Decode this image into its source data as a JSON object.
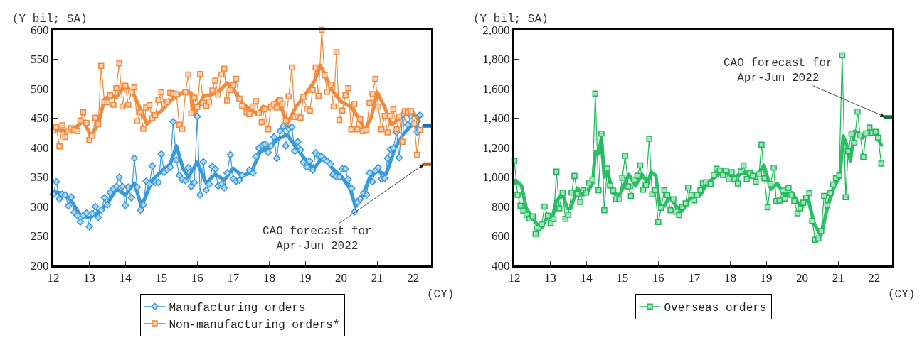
{
  "chart_data": [
    {
      "type": "line",
      "ylabel": "(Y bil; SA)",
      "xlabel": "(CY)",
      "xlim": [
        12,
        22.5
      ],
      "ylim": [
        200,
        600
      ],
      "xticks": [
        12,
        13,
        14,
        15,
        16,
        17,
        18,
        19,
        20,
        21,
        22
      ],
      "yticks": [
        200,
        250,
        300,
        350,
        400,
        450,
        500,
        550,
        600
      ],
      "grid": false,
      "legend": "bottom",
      "line_style": "solid",
      "annotations": [
        {
          "text": "CAO forecast for\nApr-Jun 2022",
          "x": 22.3,
          "y": 372
        }
      ],
      "series": [
        {
          "color": "#f08a3c",
          "marker": "none",
          "x": [
            12,
            12.5,
            12.83,
            13.05,
            13.25,
            13.42,
            13.58,
            13.75,
            14,
            14.25,
            14.5,
            14.6,
            14.83,
            15,
            15.25,
            15.5,
            15.67,
            15.83,
            15.92,
            16.17,
            16.33,
            16.58,
            16.83,
            17,
            17.25,
            17.5,
            17.67,
            17.83,
            18,
            18.25,
            18.5,
            18.75,
            19,
            19.25,
            19.42,
            19.58,
            19.75,
            20,
            20.25,
            20.5,
            20.65,
            20.83,
            21,
            21.2,
            21.4,
            21.75,
            22,
            22.17
          ],
          "values": [
            430,
            428,
            445,
            420,
            440,
            482,
            490,
            485,
            507,
            488,
            455,
            440,
            455,
            462,
            480,
            490,
            496,
            493,
            455,
            487,
            489,
            494,
            510,
            500,
            475,
            464,
            456,
            470,
            466,
            483,
            440,
            470,
            490,
            512,
            540,
            520,
            497,
            478,
            470,
            450,
            430,
            450,
            494,
            470,
            439,
            455,
            460,
            445
          ]
        },
        {
          "color": "#3a9ad9",
          "marker": "none",
          "x": [
            12,
            12.25,
            12.5,
            12.75,
            13,
            13.25,
            13.5,
            13.75,
            14,
            14.25,
            14.45,
            14.75,
            15,
            15.25,
            15.42,
            15.6,
            15.75,
            16,
            16.25,
            16.5,
            16.75,
            17,
            17.25,
            17.5,
            17.75,
            18,
            18.25,
            18.5,
            18.75,
            19,
            19.25,
            19.5,
            19.75,
            20,
            20.25,
            20.4,
            20.6,
            20.8,
            21,
            21.25,
            21.5,
            21.75,
            22,
            22.17
          ],
          "values": [
            325,
            323,
            310,
            285,
            281,
            290,
            305,
            330,
            320,
            340,
            300,
            345,
            360,
            372,
            403,
            365,
            350,
            375,
            340,
            355,
            345,
            365,
            352,
            358,
            393,
            400,
            415,
            422,
            400,
            380,
            365,
            385,
            365,
            352,
            330,
            300,
            320,
            350,
            360,
            355,
            400,
            425,
            440,
            432
          ]
        },
        {
          "name": "Manufacturing orders",
          "color": "#3a9ad9",
          "marker": "diamond",
          "x": [
            12,
            12.08,
            12.17,
            12.25,
            12.33,
            12.42,
            12.5,
            12.58,
            12.67,
            12.75,
            12.83,
            12.92,
            13,
            13.08,
            13.17,
            13.25,
            13.33,
            13.42,
            13.5,
            13.58,
            13.67,
            13.75,
            13.83,
            13.92,
            14,
            14.08,
            14.17,
            14.25,
            14.33,
            14.42,
            14.5,
            14.58,
            14.67,
            14.75,
            14.83,
            14.92,
            15,
            15.08,
            15.17,
            15.25,
            15.33,
            15.42,
            15.5,
            15.58,
            15.67,
            15.75,
            15.83,
            15.92,
            16,
            16.08,
            16.17,
            16.25,
            16.33,
            16.42,
            16.5,
            16.58,
            16.67,
            16.75,
            16.83,
            16.92,
            17,
            17.08,
            17.17,
            17.25,
            17.45,
            17.55,
            17.63,
            17.71,
            17.81,
            17.88,
            17.97,
            18.05,
            18.13,
            18.21,
            18.3,
            18.39,
            18.46,
            18.55,
            18.63,
            18.71,
            18.79,
            18.87,
            18.95,
            19.05,
            19.12,
            19.21,
            19.29,
            19.37,
            19.45,
            19.54,
            19.61,
            19.7,
            19.77,
            19.86,
            19.95,
            20.03,
            20.12,
            20.19,
            20.29,
            20.37,
            20.45,
            20.53,
            20.63,
            20.71,
            20.79,
            20.87,
            20.95,
            21.03,
            21.12,
            21.21,
            21.29,
            21.37,
            21.45,
            21.54,
            21.61,
            21.71,
            21.85,
            21.94,
            22.03,
            22.12,
            22.19
          ],
          "values": [
            321,
            342,
            313,
            321,
            320,
            301,
            316,
            290,
            285,
            274,
            285,
            289,
            266,
            288,
            300,
            282,
            294,
            315,
            303,
            324,
            330,
            334,
            350,
            334,
            302,
            333,
            315,
            382,
            333,
            294,
            303,
            343,
            338,
            369,
            341,
            341,
            389,
            358,
            363,
            367,
            444,
            379,
            353,
            346,
            344,
            366,
            334,
            341,
            453,
            320,
            376,
            328,
            338,
            368,
            364,
            335,
            338,
            332,
            357,
            388,
            347,
            343,
            345,
            353,
            362,
            357,
            385,
            399,
            404,
            406,
            392,
            403,
            418,
            382,
            428,
            436,
            403,
            432,
            435,
            394,
            410,
            396,
            375,
            367,
            377,
            362,
            391,
            386,
            385,
            380,
            377,
            372,
            354,
            351,
            350,
            364,
            364,
            346,
            331,
            291,
            307,
            313,
            323,
            320,
            357,
            342,
            361,
            366,
            347,
            348,
            382,
            397,
            399,
            426,
            383,
            456,
            439,
            454,
            441,
            426,
            455
          ]
        },
        {
          "name": "Non-manufacturing orders*",
          "color": "#f08a3c",
          "marker": "square",
          "x": [
            12,
            12.08,
            12.17,
            12.25,
            12.33,
            12.42,
            12.5,
            12.58,
            12.67,
            12.75,
            12.83,
            12.92,
            13,
            13.08,
            13.17,
            13.25,
            13.33,
            13.42,
            13.5,
            13.58,
            13.67,
            13.75,
            13.83,
            13.92,
            14,
            14.08,
            14.17,
            14.25,
            14.33,
            14.42,
            14.5,
            14.58,
            14.67,
            14.75,
            14.83,
            14.92,
            15,
            15.08,
            15.17,
            15.25,
            15.33,
            15.42,
            15.5,
            15.58,
            15.67,
            15.75,
            15.83,
            15.92,
            16,
            16.08,
            16.17,
            16.25,
            16.33,
            16.42,
            16.5,
            16.58,
            16.67,
            16.75,
            16.83,
            16.92,
            17,
            17.08,
            17.17,
            17.25,
            17.37,
            17.45,
            17.54,
            17.63,
            17.71,
            17.79,
            17.87,
            17.97,
            18.05,
            18.13,
            18.21,
            18.3,
            18.37,
            18.46,
            18.54,
            18.63,
            18.71,
            18.79,
            18.87,
            18.95,
            19.05,
            19.13,
            19.21,
            19.29,
            19.37,
            19.46,
            19.54,
            19.61,
            19.71,
            19.79,
            19.87,
            19.95,
            20.03,
            20.12,
            20.2,
            20.28,
            20.37,
            20.45,
            20.53,
            20.61,
            20.7,
            20.79,
            20.87,
            20.95,
            21.03,
            21.12,
            21.21,
            21.29,
            21.37,
            21.45,
            21.54,
            21.61,
            21.7,
            21.77,
            21.85,
            21.94,
            22.03,
            22.11,
            22.19
          ],
          "values": [
            429,
            435,
            402,
            438,
            418,
            429,
            433,
            430,
            428,
            446,
            460,
            442,
            413,
            420,
            451,
            440,
            539,
            477,
            477,
            489,
            473,
            501,
            543,
            470,
            505,
            473,
            495,
            502,
            445,
            460,
            432,
            468,
            472,
            450,
            455,
            481,
            494,
            474,
            478,
            493,
            492,
            491,
            439,
            432,
            494,
            524,
            458,
            485,
            469,
            525,
            476,
            471,
            478,
            497,
            514,
            490,
            524,
            534,
            480,
            498,
            506,
            517,
            483,
            471,
            460,
            457,
            470,
            479,
            458,
            443,
            465,
            431,
            470,
            474,
            468,
            480,
            474,
            446,
            487,
            536,
            452,
            453,
            451,
            486,
            466,
            463,
            498,
            536,
            488,
            600,
            523,
            495,
            507,
            470,
            562,
            447,
            463,
            489,
            501,
            431,
            474,
            431,
            448,
            428,
            430,
            476,
            491,
            517,
            470,
            431,
            454,
            426,
            454,
            465,
            431,
            453,
            410,
            462,
            460,
            462,
            441,
            388,
            430
          ]
        },
        {
          "color": "#1f6fb2",
          "marker": "none",
          "x": [
            22.3,
            22.48
          ],
          "values": [
            437,
            437
          ]
        },
        {
          "color": "#c55a11",
          "marker": "none",
          "x": [
            22.3,
            22.48
          ],
          "values": [
            372,
            372
          ]
        }
      ]
    },
    {
      "type": "line",
      "ylabel": "(Y bil; SA)",
      "xlabel": "(CY)",
      "xlim": [
        12,
        22.5
      ],
      "ylim": [
        400,
        2000
      ],
      "xticks": [
        12,
        13,
        14,
        15,
        16,
        17,
        18,
        19,
        20,
        21,
        22
      ],
      "yticks": [
        400,
        600,
        800,
        {
          "value": 1000,
          "label": "1,000"
        },
        {
          "value": 1200,
          "label": "1,200"
        },
        {
          "value": 1400,
          "label": "1,400"
        },
        {
          "value": 1600,
          "label": "1,600"
        },
        {
          "value": 1800,
          "label": "1,800"
        },
        {
          "value": 2000,
          "label": "2,000"
        }
      ],
      "grid": false,
      "legend": "bottom",
      "line_style": "solid",
      "annotations": [
        {
          "text": "CAO forecast for\nApr-Jun 2022",
          "x": 22.3,
          "y": 1409
        }
      ],
      "series": [
        {
          "color": "#2cbf66",
          "marker": "none",
          "x": [
            12,
            12.04,
            12.2,
            12.33,
            12.51,
            12.67,
            12.76,
            12.94,
            13.06,
            13.16,
            13.34,
            13.47,
            13.57,
            13.75,
            13.91,
            14,
            14.18,
            14.25,
            14.34,
            14.42,
            14.5,
            14.59,
            14.75,
            14.93,
            15.18,
            15.37,
            15.55,
            15.71,
            15.8,
            15.93,
            16.05,
            16.17,
            16.3,
            16.55,
            16.67,
            16.86,
            16.98,
            17.17,
            17.35,
            17.67,
            17.8,
            18.11,
            18.42,
            18.73,
            18.94,
            19.13,
            19.31,
            19.5,
            19.72,
            19.97,
            20.15,
            20.34,
            20.52,
            20.71,
            20.9,
            21.05,
            21.14,
            21.24,
            21.34,
            21.45,
            21.55,
            21.67,
            21.86,
            22.01,
            22.2
          ],
          "values": [
            957,
            978,
            942,
            788,
            726,
            665,
            657,
            741,
            726,
            834,
            888,
            788,
            788,
            926,
            880,
            888,
            957,
            1172,
            1157,
            1265,
            1000,
            1034,
            888,
            880,
            1018,
            942,
            1018,
            957,
            1034,
            1011,
            795,
            803,
            865,
            788,
            772,
            849,
            880,
            880,
            957,
            1018,
            1041,
            1003,
            1034,
            1010,
            1080,
            918,
            957,
            880,
            895,
            788,
            864,
            680,
            603,
            803,
            941,
            1003,
            1280,
            1218,
            1111,
            1311,
            1303,
            1265,
            1311,
            1311,
            1218
          ]
        },
        {
          "name": "Overseas orders",
          "color": "#20b85a",
          "marker": "square",
          "x": [
            12,
            12.09,
            12.17,
            12.25,
            12.34,
            12.42,
            12.51,
            12.59,
            12.67,
            12.76,
            12.84,
            12.93,
            13.01,
            13.09,
            13.17,
            13.25,
            13.34,
            13.42,
            13.5,
            13.59,
            13.67,
            13.75,
            13.83,
            13.92,
            14,
            14.08,
            14.17,
            14.25,
            14.34,
            14.42,
            14.5,
            14.58,
            14.66,
            14.75,
            14.83,
            14.92,
            15,
            15.08,
            15.17,
            15.24,
            15.34,
            15.42,
            15.5,
            15.58,
            15.66,
            15.75,
            15.83,
            15.91,
            16,
            16.08,
            16.17,
            16.25,
            16.34,
            16.42,
            16.5,
            16.58,
            16.67,
            16.76,
            16.83,
            16.92,
            17,
            17.08,
            17.17,
            17.24,
            17.33,
            17.45,
            17.54,
            17.62,
            17.71,
            17.8,
            17.88,
            17.96,
            18.04,
            18.12,
            18.21,
            18.29,
            18.37,
            18.46,
            18.54,
            18.63,
            18.71,
            18.8,
            18.87,
            18.95,
            19.04,
            19.12,
            19.21,
            19.28,
            19.37,
            19.46,
            19.53,
            19.62,
            19.7,
            19.78,
            19.87,
            19.95,
            20.03,
            20.11,
            20.2,
            20.28,
            20.36,
            20.45,
            20.53,
            20.61,
            20.7,
            20.78,
            20.86,
            20.94,
            21.03,
            21.11,
            21.21,
            21.28,
            21.37,
            21.45,
            21.54,
            21.61,
            21.7,
            21.78,
            21.87,
            21.95,
            22.04,
            22.11,
            22.2
          ],
          "values": [
            1111,
            880,
            806,
            772,
            745,
            718,
            734,
            615,
            657,
            680,
            800,
            738,
            688,
            714,
            1037,
            788,
            895,
            717,
            745,
            895,
            1009,
            888,
            831,
            911,
            895,
            963,
            983,
            1568,
            911,
            1295,
            775,
            1058,
            942,
            908,
            849,
            849,
            995,
            1145,
            937,
            872,
            983,
            1008,
            1080,
            914,
            946,
            1260,
            883,
            911,
            695,
            791,
            911,
            877,
            775,
            849,
            765,
            742,
            798,
            822,
            929,
            880,
            842,
            880,
            911,
            957,
            965,
            953,
            1015,
            1057,
            1046,
            1014,
            1044,
            984,
            1034,
            987,
            957,
            1038,
            1080,
            987,
            1026,
            1008,
            969,
            1018,
            1221,
            991,
            795,
            952,
            1064,
            837,
            841,
            908,
            854,
            926,
            880,
            838,
            754,
            788,
            826,
            861,
            891,
            703,
            575,
            584,
            634,
            872,
            808,
            892,
            949,
            991,
            1011,
            1826,
            864,
            1175,
            1295,
            1234,
            1444,
            1283,
            1137,
            1298,
            1337,
            1300,
            1307,
            1269,
            1091
          ]
        },
        {
          "color": "#17703a",
          "marker": "none",
          "x": [
            22.3,
            22.48
          ],
          "values": [
            1409,
            1409
          ]
        }
      ]
    }
  ]
}
